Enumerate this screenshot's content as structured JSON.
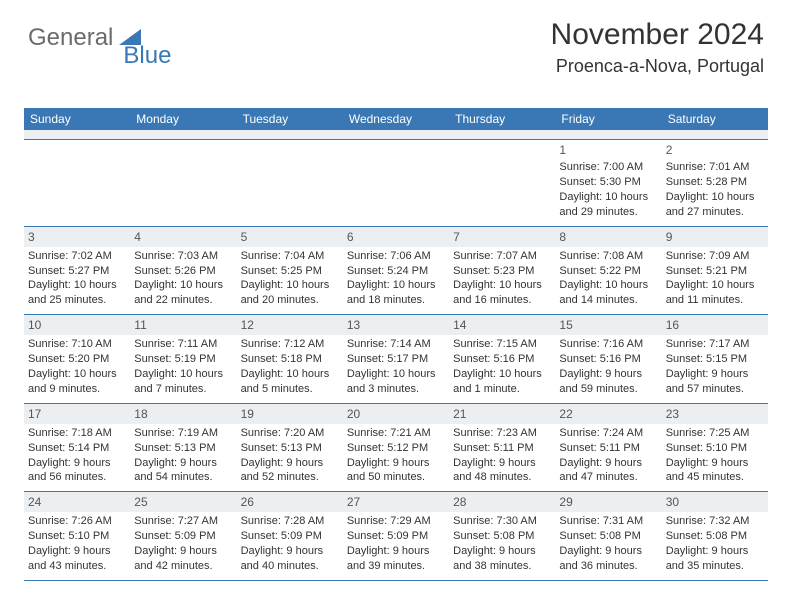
{
  "logo": {
    "part1": "General",
    "part2": "Blue"
  },
  "header": {
    "title": "November 2024",
    "location": "Proenca-a-Nova, Portugal"
  },
  "colors": {
    "brand_blue": "#3a78b5",
    "band_gray": "#eceff1",
    "text": "#333333",
    "logo_gray": "#6b6b6b"
  },
  "weekdays": [
    "Sunday",
    "Monday",
    "Tuesday",
    "Wednesday",
    "Thursday",
    "Friday",
    "Saturday"
  ],
  "weeks": [
    [
      {
        "day": "",
        "sunrise": "",
        "sunset": "",
        "daylight": ""
      },
      {
        "day": "",
        "sunrise": "",
        "sunset": "",
        "daylight": ""
      },
      {
        "day": "",
        "sunrise": "",
        "sunset": "",
        "daylight": ""
      },
      {
        "day": "",
        "sunrise": "",
        "sunset": "",
        "daylight": ""
      },
      {
        "day": "",
        "sunrise": "",
        "sunset": "",
        "daylight": ""
      },
      {
        "day": "1",
        "sunrise": "Sunrise: 7:00 AM",
        "sunset": "Sunset: 5:30 PM",
        "daylight": "Daylight: 10 hours and 29 minutes."
      },
      {
        "day": "2",
        "sunrise": "Sunrise: 7:01 AM",
        "sunset": "Sunset: 5:28 PM",
        "daylight": "Daylight: 10 hours and 27 minutes."
      }
    ],
    [
      {
        "day": "3",
        "sunrise": "Sunrise: 7:02 AM",
        "sunset": "Sunset: 5:27 PM",
        "daylight": "Daylight: 10 hours and 25 minutes."
      },
      {
        "day": "4",
        "sunrise": "Sunrise: 7:03 AM",
        "sunset": "Sunset: 5:26 PM",
        "daylight": "Daylight: 10 hours and 22 minutes."
      },
      {
        "day": "5",
        "sunrise": "Sunrise: 7:04 AM",
        "sunset": "Sunset: 5:25 PM",
        "daylight": "Daylight: 10 hours and 20 minutes."
      },
      {
        "day": "6",
        "sunrise": "Sunrise: 7:06 AM",
        "sunset": "Sunset: 5:24 PM",
        "daylight": "Daylight: 10 hours and 18 minutes."
      },
      {
        "day": "7",
        "sunrise": "Sunrise: 7:07 AM",
        "sunset": "Sunset: 5:23 PM",
        "daylight": "Daylight: 10 hours and 16 minutes."
      },
      {
        "day": "8",
        "sunrise": "Sunrise: 7:08 AM",
        "sunset": "Sunset: 5:22 PM",
        "daylight": "Daylight: 10 hours and 14 minutes."
      },
      {
        "day": "9",
        "sunrise": "Sunrise: 7:09 AM",
        "sunset": "Sunset: 5:21 PM",
        "daylight": "Daylight: 10 hours and 11 minutes."
      }
    ],
    [
      {
        "day": "10",
        "sunrise": "Sunrise: 7:10 AM",
        "sunset": "Sunset: 5:20 PM",
        "daylight": "Daylight: 10 hours and 9 minutes."
      },
      {
        "day": "11",
        "sunrise": "Sunrise: 7:11 AM",
        "sunset": "Sunset: 5:19 PM",
        "daylight": "Daylight: 10 hours and 7 minutes."
      },
      {
        "day": "12",
        "sunrise": "Sunrise: 7:12 AM",
        "sunset": "Sunset: 5:18 PM",
        "daylight": "Daylight: 10 hours and 5 minutes."
      },
      {
        "day": "13",
        "sunrise": "Sunrise: 7:14 AM",
        "sunset": "Sunset: 5:17 PM",
        "daylight": "Daylight: 10 hours and 3 minutes."
      },
      {
        "day": "14",
        "sunrise": "Sunrise: 7:15 AM",
        "sunset": "Sunset: 5:16 PM",
        "daylight": "Daylight: 10 hours and 1 minute."
      },
      {
        "day": "15",
        "sunrise": "Sunrise: 7:16 AM",
        "sunset": "Sunset: 5:16 PM",
        "daylight": "Daylight: 9 hours and 59 minutes."
      },
      {
        "day": "16",
        "sunrise": "Sunrise: 7:17 AM",
        "sunset": "Sunset: 5:15 PM",
        "daylight": "Daylight: 9 hours and 57 minutes."
      }
    ],
    [
      {
        "day": "17",
        "sunrise": "Sunrise: 7:18 AM",
        "sunset": "Sunset: 5:14 PM",
        "daylight": "Daylight: 9 hours and 56 minutes."
      },
      {
        "day": "18",
        "sunrise": "Sunrise: 7:19 AM",
        "sunset": "Sunset: 5:13 PM",
        "daylight": "Daylight: 9 hours and 54 minutes."
      },
      {
        "day": "19",
        "sunrise": "Sunrise: 7:20 AM",
        "sunset": "Sunset: 5:13 PM",
        "daylight": "Daylight: 9 hours and 52 minutes."
      },
      {
        "day": "20",
        "sunrise": "Sunrise: 7:21 AM",
        "sunset": "Sunset: 5:12 PM",
        "daylight": "Daylight: 9 hours and 50 minutes."
      },
      {
        "day": "21",
        "sunrise": "Sunrise: 7:23 AM",
        "sunset": "Sunset: 5:11 PM",
        "daylight": "Daylight: 9 hours and 48 minutes."
      },
      {
        "day": "22",
        "sunrise": "Sunrise: 7:24 AM",
        "sunset": "Sunset: 5:11 PM",
        "daylight": "Daylight: 9 hours and 47 minutes."
      },
      {
        "day": "23",
        "sunrise": "Sunrise: 7:25 AM",
        "sunset": "Sunset: 5:10 PM",
        "daylight": "Daylight: 9 hours and 45 minutes."
      }
    ],
    [
      {
        "day": "24",
        "sunrise": "Sunrise: 7:26 AM",
        "sunset": "Sunset: 5:10 PM",
        "daylight": "Daylight: 9 hours and 43 minutes."
      },
      {
        "day": "25",
        "sunrise": "Sunrise: 7:27 AM",
        "sunset": "Sunset: 5:09 PM",
        "daylight": "Daylight: 9 hours and 42 minutes."
      },
      {
        "day": "26",
        "sunrise": "Sunrise: 7:28 AM",
        "sunset": "Sunset: 5:09 PM",
        "daylight": "Daylight: 9 hours and 40 minutes."
      },
      {
        "day": "27",
        "sunrise": "Sunrise: 7:29 AM",
        "sunset": "Sunset: 5:09 PM",
        "daylight": "Daylight: 9 hours and 39 minutes."
      },
      {
        "day": "28",
        "sunrise": "Sunrise: 7:30 AM",
        "sunset": "Sunset: 5:08 PM",
        "daylight": "Daylight: 9 hours and 38 minutes."
      },
      {
        "day": "29",
        "sunrise": "Sunrise: 7:31 AM",
        "sunset": "Sunset: 5:08 PM",
        "daylight": "Daylight: 9 hours and 36 minutes."
      },
      {
        "day": "30",
        "sunrise": "Sunrise: 7:32 AM",
        "sunset": "Sunset: 5:08 PM",
        "daylight": "Daylight: 9 hours and 35 minutes."
      }
    ]
  ]
}
